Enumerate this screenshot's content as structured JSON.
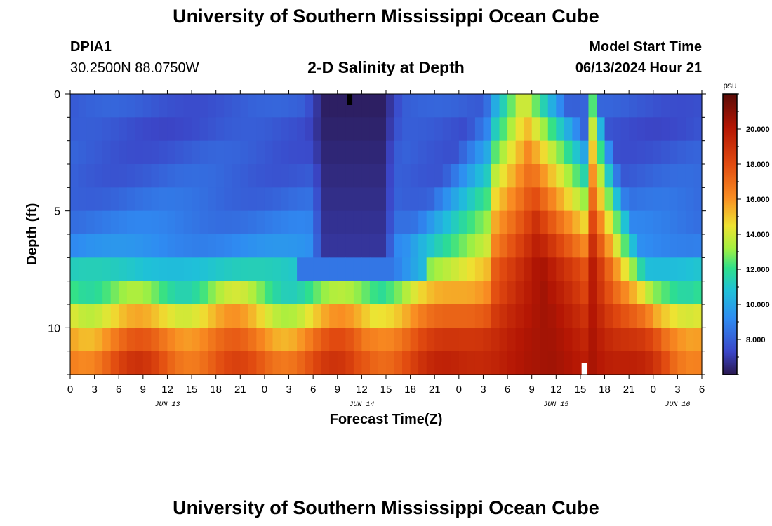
{
  "header": {
    "title": "University of Southern Mississippi Ocean Cube",
    "station_id": "DPIA1",
    "station_coords": "30.2500N  88.0750W",
    "chart_title": "2-D Salinity at Depth",
    "model_start_label": "Model Start Time",
    "model_start_value": "06/13/2024 Hour 21"
  },
  "footer": {
    "title": "University of Southern Mississippi Ocean Cube"
  },
  "chart_data": {
    "type": "heatmap",
    "title": "2-D Salinity at Depth",
    "xlabel": "Forecast Time(Z)",
    "ylabel": "Depth (ft)",
    "x_hours_range": [
      0,
      78
    ],
    "x_tick_labels": [
      "0",
      "3",
      "6",
      "9",
      "12",
      "15",
      "18",
      "21",
      "0",
      "3",
      "6",
      "9",
      "12",
      "15",
      "18",
      "21",
      "0",
      "3",
      "6",
      "9",
      "12",
      "15",
      "18",
      "21",
      "0",
      "3",
      "6"
    ],
    "date_labels": [
      {
        "label": "JUN 13",
        "hour": 12
      },
      {
        "label": "JUN 14",
        "hour": 36
      },
      {
        "label": "JUN 15",
        "hour": 60
      },
      {
        "label": "JUN 16",
        "hour": 75
      }
    ],
    "depth_range_ft": [
      0,
      12
    ],
    "y_tick_labels": [
      "0",
      "5",
      "10"
    ],
    "y_tick_values": [
      0,
      5,
      10
    ],
    "depth_layers": 12,
    "colorbar": {
      "unit": "psu",
      "range": [
        6.0,
        22.0
      ],
      "tick_labels": [
        "8.000",
        "10.000",
        "12.000",
        "14.000",
        "16.000",
        "18.000",
        "20.000"
      ],
      "tick_values": [
        8,
        10,
        12,
        14,
        16,
        18,
        20
      ]
    },
    "markers": [
      {
        "hour": 34.5,
        "depth_ft": 0,
        "color": "#000000"
      },
      {
        "hour": 63.5,
        "depth_ft": 12,
        "color": "#ffffff"
      }
    ],
    "layer_base": [
      7.8,
      7.6,
      7.8,
      8.0,
      8.3,
      8.7,
      9.2,
      11.0,
      12.6,
      14.8,
      16.6,
      17.6
    ],
    "events": {
      "fresh_pulse": {
        "center_hour": 35,
        "half_width_hours": 3.5,
        "min_psu": 6.2,
        "max_depth_layer": 6
      },
      "salt_tongue": {
        "peak_hour": 61,
        "peak_psu": 20.5,
        "shallow_limit_layer": 0
      }
    }
  }
}
